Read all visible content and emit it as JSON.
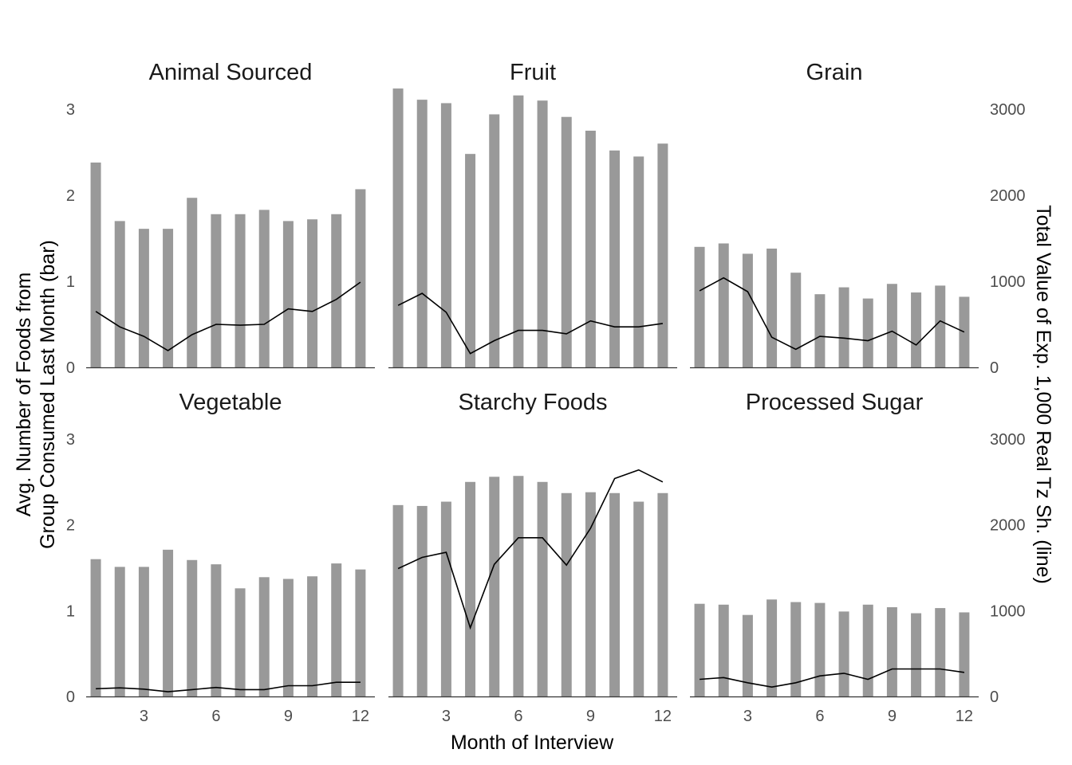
{
  "chart_data": {
    "type": "bar",
    "x": [
      1,
      2,
      3,
      4,
      5,
      6,
      7,
      8,
      9,
      10,
      11,
      12
    ],
    "xlabel": "Month of Interview",
    "ylabel_left": [
      "Avg. Number of Foods from",
      "Group Consumed Last Month (bar)"
    ],
    "ylabel_right": "Total Value of Exp. 1,000 Real Tz Sh. (line)",
    "x_ticks": [
      3,
      6,
      9,
      12
    ],
    "y_left_ticks": [
      0,
      1,
      2,
      3
    ],
    "y_right_ticks": [
      0,
      1000,
      2000,
      3000
    ],
    "y_left_range": [
      0,
      3.25
    ],
    "y_right_range": [
      0,
      3250
    ],
    "x_range": [
      0.6,
      12.6
    ],
    "grid": false,
    "layout": "2x3 facets",
    "bar_color": "#999999",
    "line_color": "#000000",
    "panels": [
      {
        "title": "Animal Sourced",
        "series": [
          {
            "name": "bar",
            "values": [
              2.38,
              1.7,
              1.61,
              1.61,
              1.97,
              1.78,
              1.78,
              1.83,
              1.7,
              1.72,
              1.78,
              2.07
            ]
          },
          {
            "name": "line",
            "values": [
              650,
              470,
              360,
              195,
              380,
              500,
              490,
              500,
              680,
              650,
              790,
              990
            ]
          }
        ]
      },
      {
        "title": "Fruit",
        "series": [
          {
            "name": "bar",
            "values": [
              3.24,
              3.11,
              3.07,
              2.48,
              2.94,
              3.16,
              3.1,
              2.91,
              2.75,
              2.52,
              2.45,
              2.6
            ]
          },
          {
            "name": "line",
            "values": [
              720,
              860,
              640,
              160,
              310,
              430,
              430,
              390,
              540,
              470,
              470,
              510
            ]
          }
        ]
      },
      {
        "title": "Grain",
        "series": [
          {
            "name": "bar",
            "values": [
              1.4,
              1.44,
              1.32,
              1.38,
              1.1,
              0.85,
              0.93,
              0.8,
              0.97,
              0.87,
              0.95,
              0.82
            ]
          },
          {
            "name": "line",
            "values": [
              890,
              1040,
              880,
              350,
              210,
              360,
              340,
              310,
              420,
              260,
              540,
              410
            ]
          }
        ]
      },
      {
        "title": "Vegetable",
        "series": [
          {
            "name": "bar",
            "values": [
              1.6,
              1.51,
              1.51,
              1.71,
              1.59,
              1.54,
              1.26,
              1.39,
              1.37,
              1.4,
              1.55,
              1.48
            ]
          },
          {
            "name": "line",
            "values": [
              90,
              100,
              85,
              55,
              80,
              105,
              80,
              80,
              125,
              125,
              165,
              165
            ]
          }
        ]
      },
      {
        "title": "Starchy Foods",
        "series": [
          {
            "name": "bar",
            "values": [
              2.23,
              2.22,
              2.27,
              2.5,
              2.56,
              2.57,
              2.5,
              2.37,
              2.38,
              2.37,
              2.27,
              2.37
            ]
          },
          {
            "name": "line",
            "values": [
              1490,
              1620,
              1680,
              800,
              1540,
              1850,
              1850,
              1530,
              1960,
              2540,
              2640,
              2500
            ]
          }
        ]
      },
      {
        "title": "Processed Sugar",
        "series": [
          {
            "name": "bar",
            "values": [
              1.08,
              1.07,
              0.95,
              1.13,
              1.1,
              1.09,
              0.99,
              1.07,
              1.04,
              0.97,
              1.03,
              0.98
            ]
          },
          {
            "name": "line",
            "values": [
              200,
              220,
              160,
              110,
              160,
              240,
              270,
              200,
              320,
              320,
              320,
              280
            ]
          }
        ]
      }
    ]
  }
}
